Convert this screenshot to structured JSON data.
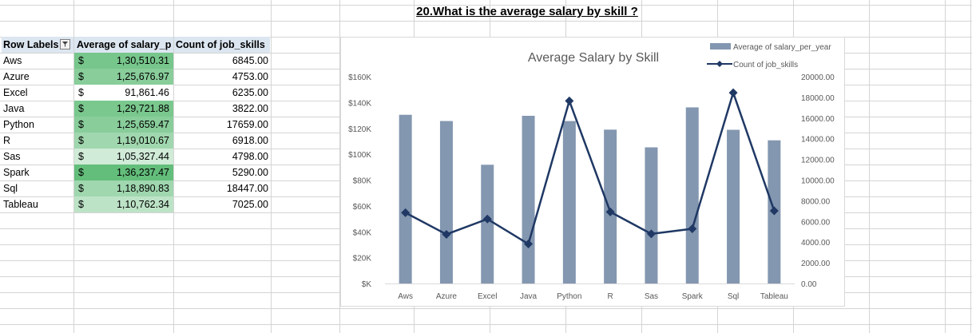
{
  "sheet": {
    "question_title": "20.What is the average salary by skill ?",
    "pivot": {
      "headers": {
        "row_labels": "Row Labels",
        "avg_salary": "Average of salary_p",
        "count_skills": "Count of job_skills"
      },
      "currency": "$",
      "rows": [
        {
          "label": "Aws",
          "salary": "1,30,510.31",
          "count": "6845.00"
        },
        {
          "label": "Azure",
          "salary": "1,25,676.97",
          "count": "4753.00"
        },
        {
          "label": "Excel",
          "salary": "91,861.46",
          "count": "6235.00"
        },
        {
          "label": "Java",
          "salary": "1,29,721.88",
          "count": "3822.00"
        },
        {
          "label": "Python",
          "salary": "1,25,659.47",
          "count": "17659.00"
        },
        {
          "label": "R",
          "salary": "1,19,010.67",
          "count": "6918.00"
        },
        {
          "label": "Sas",
          "salary": "1,05,327.44",
          "count": "4798.00"
        },
        {
          "label": "Spark",
          "salary": "1,36,237.47",
          "count": "5290.00"
        },
        {
          "label": "Sql",
          "salary": "1,18,890.83",
          "count": "18447.00"
        },
        {
          "label": "Tableau",
          "salary": "1,10,762.34",
          "count": "7025.00"
        }
      ]
    }
  },
  "chart_data": {
    "type": "bar",
    "title": "Average Salary by Skill",
    "categories": [
      "Aws",
      "Azure",
      "Excel",
      "Java",
      "Python",
      "R",
      "Sas",
      "Spark",
      "Sql",
      "Tableau"
    ],
    "series": [
      {
        "name": "Average of salary_per_year",
        "type": "bar",
        "axis": "left",
        "values": [
          130510.31,
          125676.97,
          91861.46,
          129721.88,
          125659.47,
          119010.67,
          105327.44,
          136237.47,
          118890.83,
          110762.34
        ],
        "color": "#8497b0"
      },
      {
        "name": "Count of job_skills",
        "type": "line",
        "axis": "right",
        "values": [
          6845,
          4753,
          6235,
          3822,
          17659,
          6918,
          4798,
          5290,
          18447,
          7025
        ],
        "color": "#1f3864"
      }
    ],
    "left_axis": {
      "ylim": [
        0,
        160000
      ],
      "tick_values": [
        0,
        20000,
        40000,
        60000,
        80000,
        100000,
        120000,
        140000,
        160000
      ],
      "tick_labels": [
        "$K",
        "$20K",
        "$40K",
        "$60K",
        "$80K",
        "$100K",
        "$120K",
        "$140K",
        "$160K"
      ]
    },
    "right_axis": {
      "ylim": [
        0,
        20000
      ],
      "tick_values": [
        0,
        2000,
        4000,
        6000,
        8000,
        10000,
        12000,
        14000,
        16000,
        18000,
        20000
      ],
      "tick_labels": [
        "0.00",
        "2000.00",
        "4000.00",
        "6000.00",
        "8000.00",
        "10000.00",
        "12000.00",
        "14000.00",
        "16000.00",
        "18000.00",
        "20000.00"
      ]
    },
    "legend": "top-right",
    "grid": false
  }
}
